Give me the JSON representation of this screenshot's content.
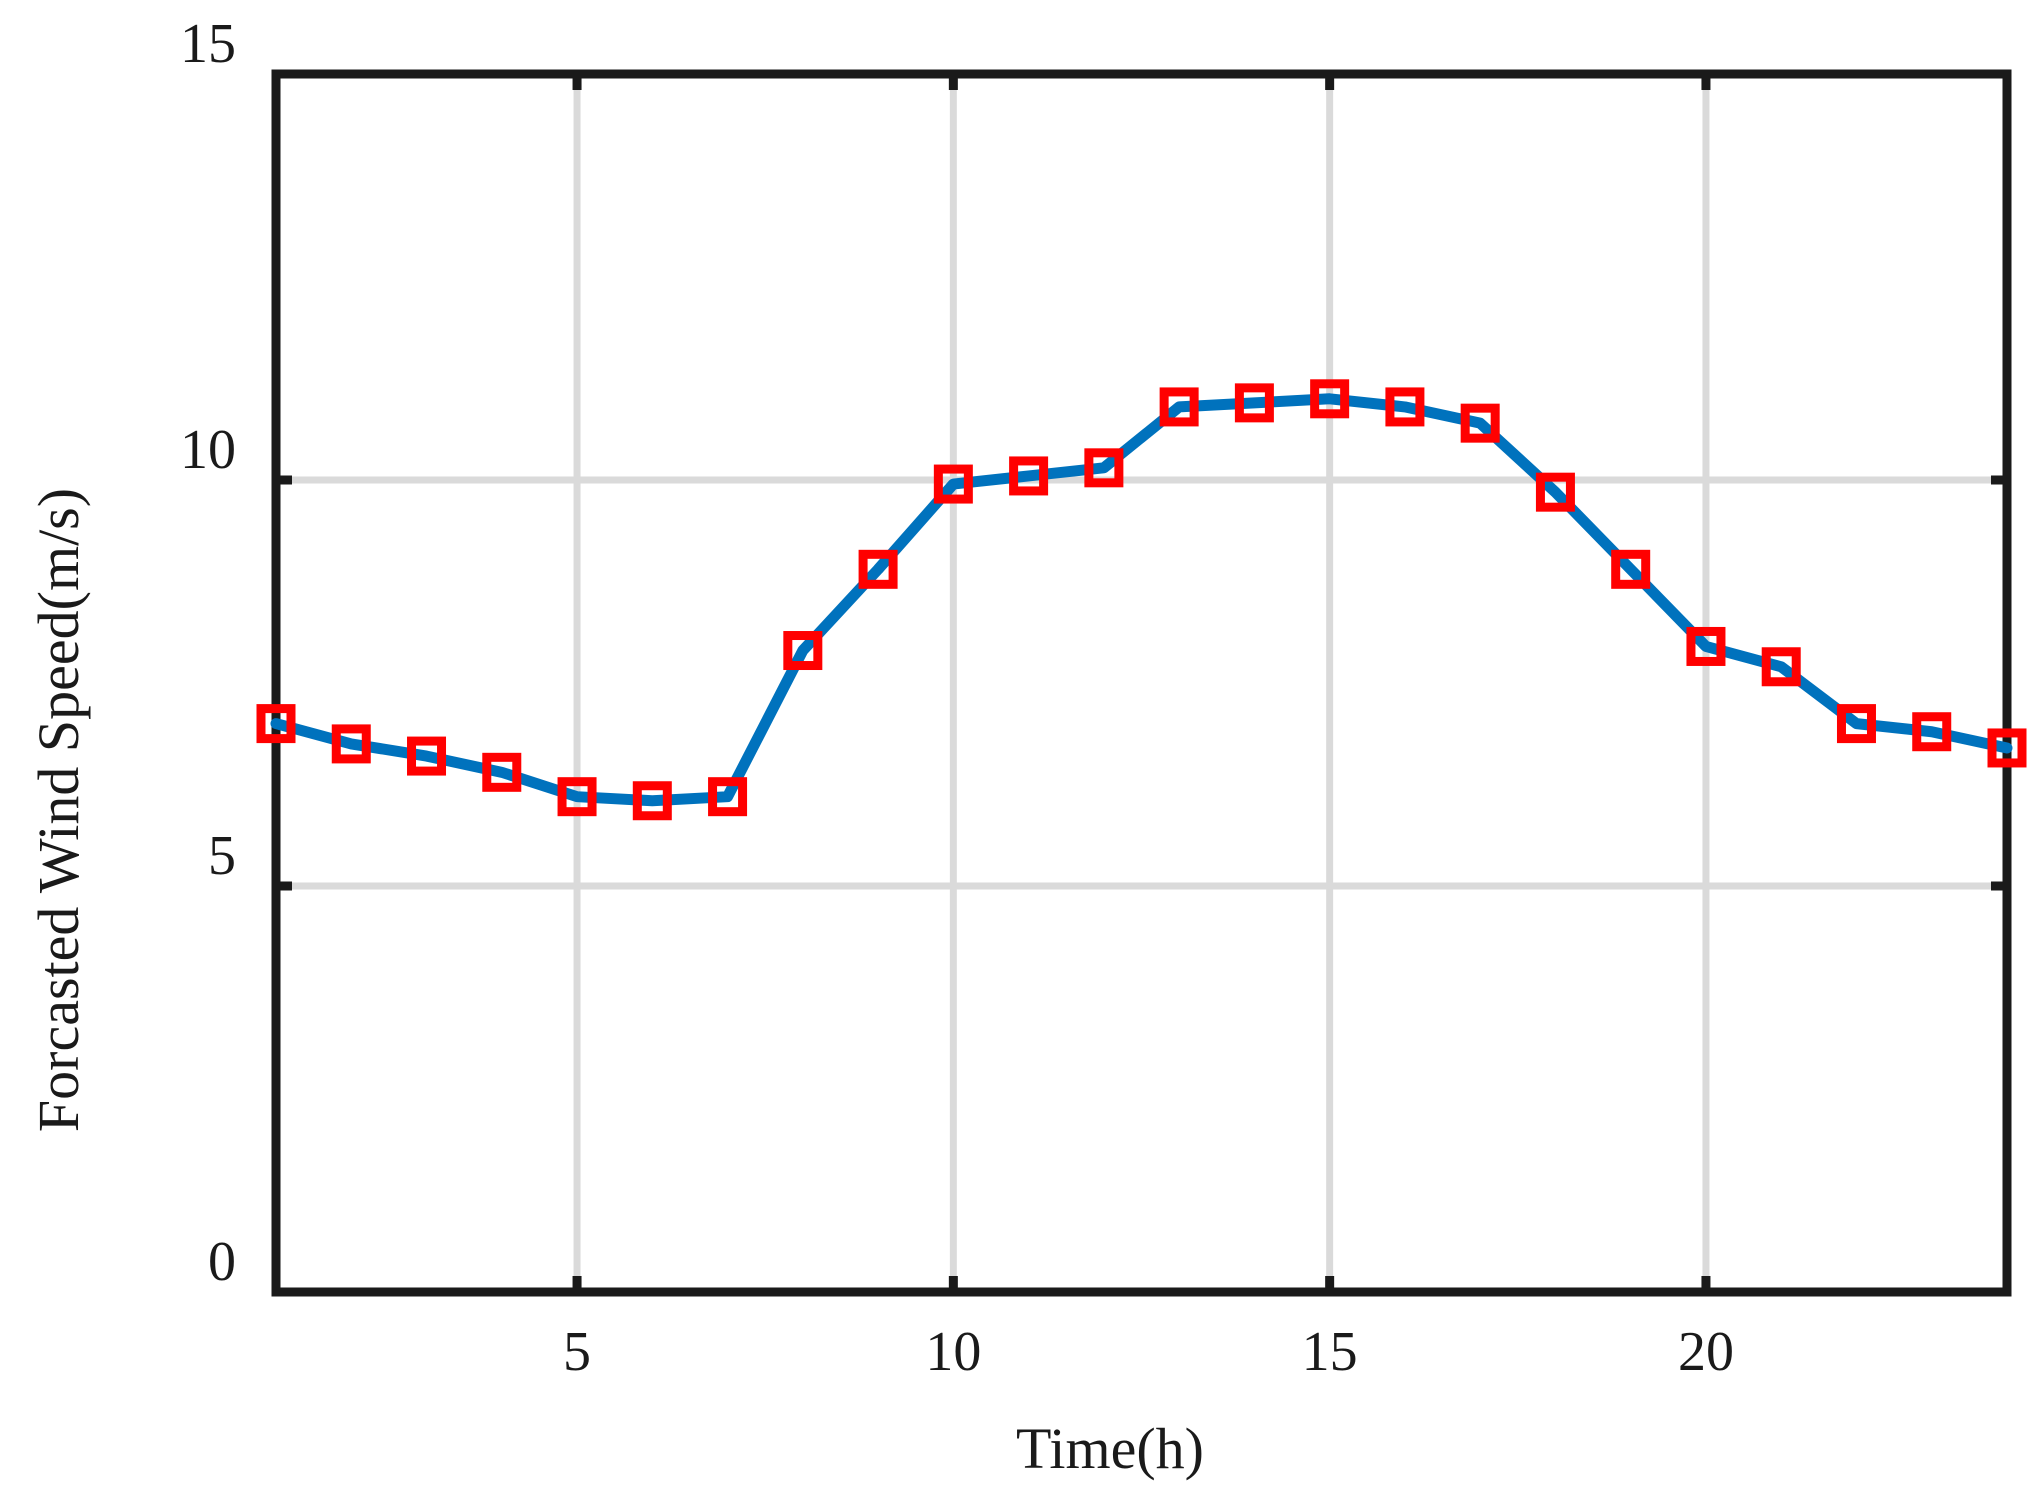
{
  "chart_data": {
    "type": "line",
    "title": "",
    "xlabel": "Time(h)",
    "ylabel": "Forcasted Wind Speed(m/s)",
    "xlim": [
      1,
      24
    ],
    "ylim": [
      0,
      15
    ],
    "xticks": [
      5,
      10,
      15,
      20
    ],
    "yticks": [
      0,
      5,
      10,
      15
    ],
    "xtick_labels": [
      "5",
      "10",
      "15",
      "20"
    ],
    "ytick_labels": [
      "0",
      "5",
      "10",
      "15"
    ],
    "grid": true,
    "legend": "none",
    "x": [
      1,
      2,
      3,
      4,
      5,
      6,
      7,
      8,
      9,
      10,
      11,
      12,
      13,
      14,
      15,
      16,
      17,
      18,
      19,
      20,
      21,
      22,
      23,
      24
    ],
    "series": [
      {
        "values": [
          7.0,
          6.75,
          6.6,
          6.4,
          6.1,
          6.05,
          6.1,
          7.9,
          8.9,
          9.95,
          10.05,
          10.15,
          10.9,
          10.95,
          11.0,
          10.9,
          10.7,
          9.85,
          8.9,
          7.95,
          7.7,
          7.0,
          6.9,
          6.7
        ],
        "line_color": "#0072bd",
        "marker": "square",
        "marker_color": "#ff0000"
      }
    ],
    "colors": {
      "grid": "#dadada",
      "axes": "#1a1a1a"
    }
  }
}
